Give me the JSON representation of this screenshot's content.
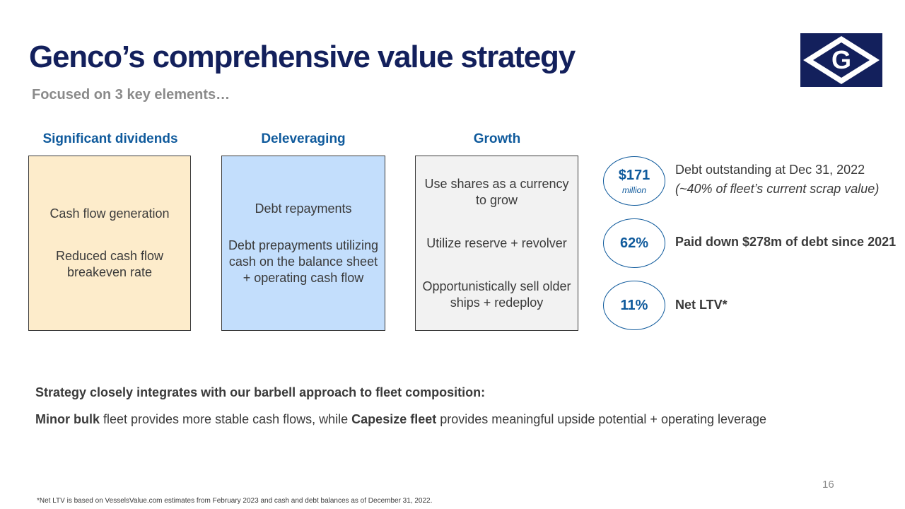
{
  "header": {
    "title": "Genco’s comprehensive value strategy",
    "subtitle": "Focused on 3 key elements…",
    "logo_letter": "G"
  },
  "colors": {
    "title": "#13205c",
    "accent": "#0f5a9c",
    "box_dividends": "#fdeccb",
    "box_deleveraging": "#c3defc",
    "box_growth": "#f2f2f2"
  },
  "columns": [
    {
      "heading": "Significant dividends",
      "items": [
        "Cash flow generation",
        "Reduced cash flow breakeven rate"
      ]
    },
    {
      "heading": "Deleveraging",
      "items": [
        "Debt repayments",
        "Debt prepayments utilizing cash on the balance sheet + operating cash flow"
      ]
    },
    {
      "heading": "Growth",
      "items": [
        "Use shares as a currency to grow",
        "Utilize reserve + revolver",
        "Opportunistically sell older ships + redeploy"
      ]
    }
  ],
  "stats": [
    {
      "value": "$171",
      "unit": "million",
      "line1": "Debt outstanding at Dec 31, 2022",
      "line2": "(~40% of fleet’s current scrap value)"
    },
    {
      "value": "62%",
      "line1": "Paid down $278m of debt since 2021"
    },
    {
      "value": "11%",
      "line1": "Net LTV*"
    }
  ],
  "strategy": {
    "heading": "Strategy closely integrates with our barbell approach to fleet composition:",
    "minor_bulk": "Minor bulk",
    "text1": " fleet provides more stable cash flows, while ",
    "capesize": "Capesize fleet",
    "text2": " provides meaningful upside potential + operating leverage"
  },
  "page_number": "16",
  "footnote": "*Net LTV is based on VesselsValue.com estimates from February 2023 and cash and debt balances as of December 31, 2022."
}
